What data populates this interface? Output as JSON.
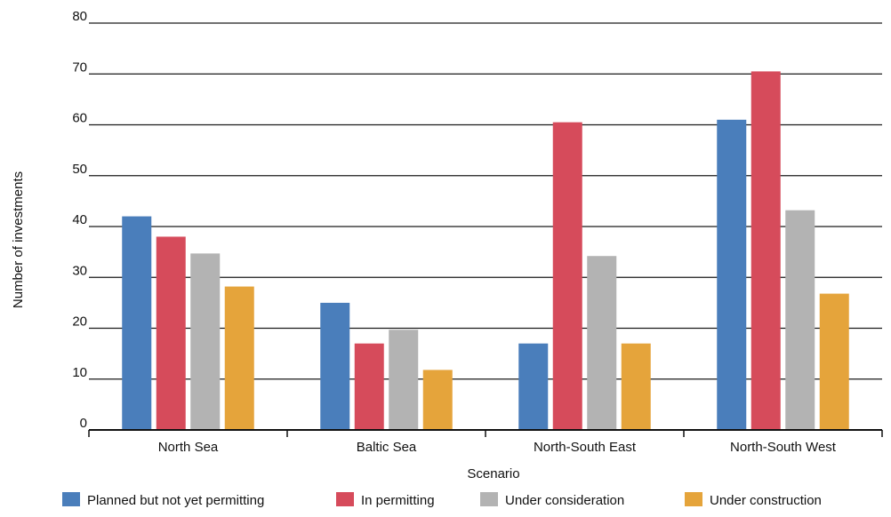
{
  "chart_data": {
    "type": "bar",
    "title": "",
    "xlabel": "Scenario",
    "ylabel": "Number of investments",
    "ylim": [
      0,
      80
    ],
    "yticks": [
      0,
      10,
      20,
      30,
      40,
      50,
      60,
      70,
      80
    ],
    "grid": "horizontal",
    "legend_position": "bottom",
    "categories": [
      "North Sea",
      "Baltic Sea",
      "North-South East",
      "North-South West"
    ],
    "series": [
      {
        "name": "Planned but not yet permitting",
        "color": "#4a7ebb",
        "values": [
          42,
          25,
          17,
          61
        ]
      },
      {
        "name": "In permitting",
        "color": "#d64b5b",
        "values": [
          38,
          17,
          60.5,
          70.5
        ]
      },
      {
        "name": "Under consideration",
        "color": "#b3b3b3",
        "values": [
          34.7,
          19.7,
          34.2,
          43.2
        ]
      },
      {
        "name": "Under construction",
        "color": "#e5a43b",
        "values": [
          28.2,
          11.8,
          17,
          26.8
        ]
      }
    ]
  }
}
